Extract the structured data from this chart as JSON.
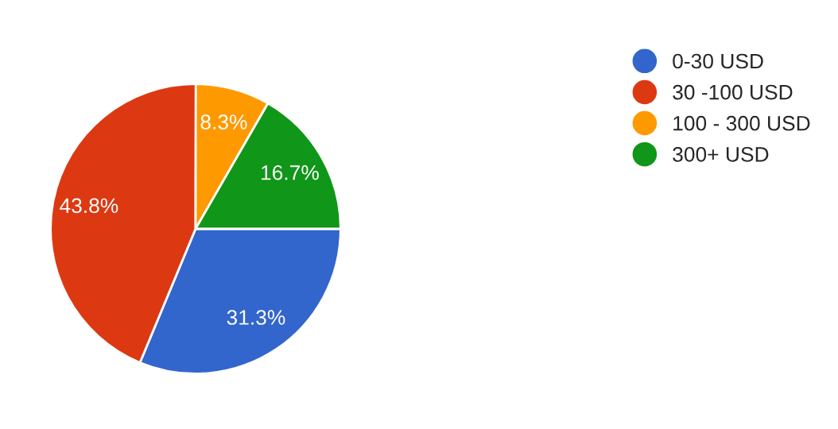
{
  "chart_data": {
    "type": "pie",
    "categories": [
      "0-30 USD",
      "30 -100 USD",
      "100 - 300 USD",
      "300+ USD"
    ],
    "values": [
      31.3,
      43.8,
      8.3,
      16.7
    ],
    "colors": [
      "#3366cc",
      "#dc3912",
      "#ff9900",
      "#109618"
    ],
    "value_labels": [
      "31.3%",
      "43.8%",
      "8.3%",
      "16.7%"
    ],
    "legend": "top right"
  }
}
